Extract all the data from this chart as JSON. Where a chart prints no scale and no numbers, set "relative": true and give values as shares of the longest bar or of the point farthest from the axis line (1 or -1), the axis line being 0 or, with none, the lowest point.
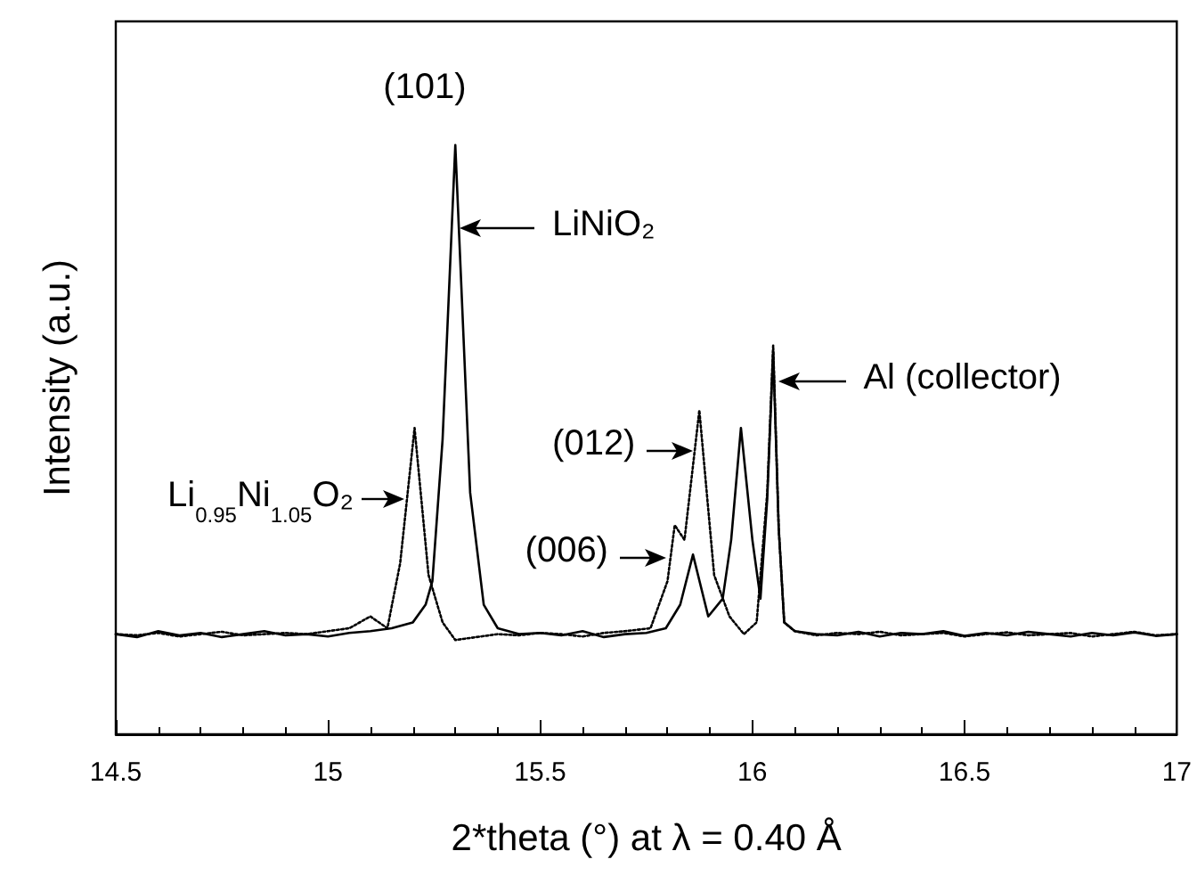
{
  "chart_data": {
    "type": "line",
    "relative": true,
    "xlabel": "2*theta (°) at λ = 0.40 Å",
    "ylabel": "Intensity (a.u.)",
    "xlim": [
      14.5,
      17
    ],
    "xticks": [
      14.5,
      15,
      15.5,
      16,
      16.5,
      17
    ],
    "grid": false,
    "marker": "none",
    "series": [
      {
        "color": "#000000",
        "line_style": "solid",
        "x": [
          14.5,
          14.55,
          14.6,
          14.65,
          14.7,
          14.75,
          14.8,
          14.85,
          14.9,
          14.95,
          15.0,
          15.05,
          15.1,
          15.15,
          15.2,
          15.23,
          15.246,
          15.27,
          15.3,
          15.335,
          15.367,
          15.4,
          15.45,
          15.5,
          15.55,
          15.6,
          15.65,
          15.7,
          15.75,
          15.796,
          15.83,
          15.86,
          15.896,
          15.93,
          15.95,
          15.973,
          16.0,
          16.019,
          16.035,
          16.049,
          16.062,
          16.075,
          16.1,
          16.15,
          16.2,
          16.25,
          16.3,
          16.35,
          16.4,
          16.45,
          16.5,
          16.55,
          16.6,
          16.65,
          16.7,
          16.75,
          16.8,
          16.85,
          16.9,
          16.95,
          17.0
        ],
        "values": [
          0.17,
          0.165,
          0.175,
          0.168,
          0.172,
          0.165,
          0.17,
          0.175,
          0.168,
          0.17,
          0.166,
          0.172,
          0.175,
          0.18,
          0.19,
          0.22,
          0.26,
          0.5,
          1.0,
          0.41,
          0.22,
          0.18,
          0.17,
          0.172,
          0.168,
          0.175,
          0.165,
          0.17,
          0.172,
          0.18,
          0.22,
          0.305,
          0.2,
          0.23,
          0.33,
          0.52,
          0.33,
          0.23,
          0.4,
          0.65,
          0.35,
          0.19,
          0.175,
          0.17,
          0.168,
          0.174,
          0.166,
          0.172,
          0.17,
          0.175,
          0.167,
          0.172,
          0.168,
          0.174,
          0.17,
          0.166,
          0.172,
          0.168,
          0.173,
          0.167,
          0.17
        ]
      },
      {
        "color": "#000000",
        "line_style": "dotted",
        "x": [
          14.5,
          14.55,
          14.6,
          14.65,
          14.7,
          14.75,
          14.8,
          14.85,
          14.9,
          14.95,
          15.0,
          15.05,
          15.1,
          15.14,
          15.17,
          15.204,
          15.237,
          15.27,
          15.3,
          15.35,
          15.4,
          15.45,
          15.5,
          15.55,
          15.6,
          15.65,
          15.7,
          15.76,
          15.8,
          15.817,
          15.84,
          15.875,
          15.91,
          15.946,
          15.98,
          16.01,
          16.035,
          16.049,
          16.062,
          16.075,
          16.1,
          16.15,
          16.2,
          16.25,
          16.3,
          16.35,
          16.4,
          16.45,
          16.5,
          16.55,
          16.6,
          16.65,
          16.7,
          16.75,
          16.8,
          16.85,
          16.9,
          16.95,
          17.0
        ],
        "values": [
          0.17,
          0.168,
          0.172,
          0.166,
          0.17,
          0.174,
          0.168,
          0.17,
          0.172,
          0.17,
          0.175,
          0.18,
          0.2,
          0.18,
          0.29,
          0.52,
          0.27,
          0.19,
          0.16,
          0.165,
          0.17,
          0.168,
          0.172,
          0.17,
          0.166,
          0.172,
          0.175,
          0.18,
          0.26,
          0.355,
          0.33,
          0.55,
          0.27,
          0.2,
          0.17,
          0.19,
          0.41,
          0.66,
          0.35,
          0.19,
          0.175,
          0.168,
          0.172,
          0.17,
          0.174,
          0.168,
          0.17,
          0.172,
          0.166,
          0.17,
          0.173,
          0.168,
          0.17,
          0.172,
          0.166,
          0.17,
          0.174,
          0.168,
          0.17
        ]
      }
    ],
    "annotations": [
      {
        "text": "(101)",
        "x": 15.3,
        "y": 1.0
      },
      {
        "text": "LiNiO₂",
        "x": 15.31,
        "y": 0.86
      },
      {
        "text": "Al (collector)",
        "x": 16.06,
        "y": 0.6
      },
      {
        "text": "(012)",
        "x": 15.86,
        "y": 0.48
      },
      {
        "text": "(006)",
        "x": 15.796,
        "y": 0.3
      },
      {
        "text": "Li$_{0.95}$Ni$_{1.05}$O₂",
        "x": 15.18,
        "y": 0.4
      }
    ]
  }
}
